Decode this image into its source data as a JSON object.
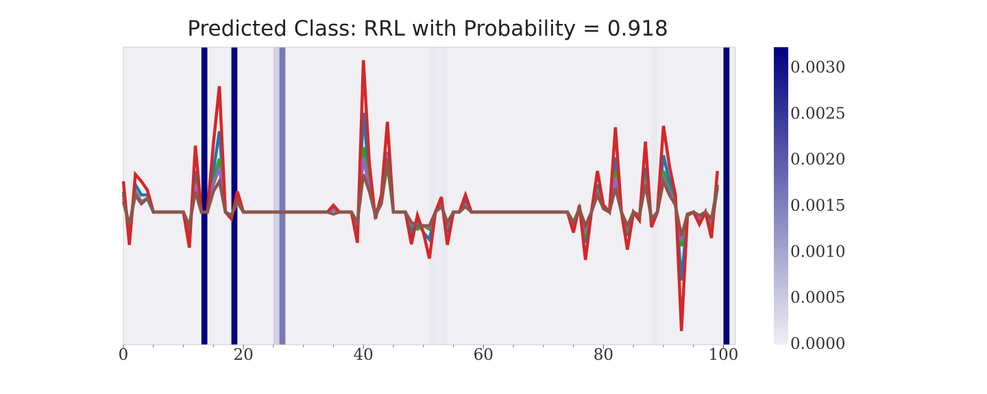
{
  "chart_data": {
    "type": "line",
    "title": "Predicted Class: RRL with Probability = 0.918",
    "x": [
      0,
      1,
      2,
      3,
      4,
      5,
      6,
      7,
      8,
      9,
      10,
      11,
      12,
      13,
      14,
      15,
      16,
      17,
      18,
      19,
      20,
      21,
      22,
      23,
      24,
      25,
      26,
      27,
      28,
      29,
      30,
      31,
      32,
      33,
      34,
      35,
      36,
      37,
      38,
      39,
      40,
      41,
      42,
      43,
      44,
      45,
      46,
      47,
      48,
      49,
      50,
      51,
      52,
      53,
      54,
      55,
      56,
      57,
      58,
      59,
      60,
      61,
      62,
      63,
      64,
      65,
      66,
      67,
      68,
      69,
      70,
      71,
      72,
      73,
      74,
      75,
      76,
      77,
      78,
      79,
      80,
      81,
      82,
      83,
      84,
      85,
      86,
      87,
      88,
      89,
      90,
      91,
      92,
      93,
      94,
      95,
      96,
      97,
      98,
      99
    ],
    "series": [
      {
        "color": "#1f77b4",
        "values": [
          0.3,
          -0.3,
          0.4,
          0.25,
          0.25,
          0,
          0,
          0,
          0,
          0,
          0,
          -0.35,
          0.6,
          0,
          0,
          0.6,
          1.18,
          0,
          -0.05,
          0.2,
          0,
          0,
          0,
          0,
          0,
          0,
          0,
          0,
          0,
          0,
          0,
          0,
          0,
          0,
          0,
          0.05,
          0,
          0,
          0,
          -0.3,
          1.45,
          0.5,
          -0.05,
          0.2,
          0.85,
          0,
          0,
          0,
          -0.3,
          -0.1,
          -0.3,
          -0.4,
          0,
          0.15,
          -0.3,
          0,
          0,
          0.15,
          0,
          0,
          0,
          0,
          0,
          0,
          0,
          0,
          0,
          0,
          0,
          0,
          0,
          0,
          0,
          0,
          0,
          -0.2,
          0.05,
          -0.45,
          0,
          0.4,
          0.05,
          0,
          0.8,
          0,
          -0.35,
          0,
          -0.08,
          0.65,
          -0.15,
          0,
          0.83,
          0.45,
          0.15,
          -1.0,
          -0.05,
          0,
          -0.12,
          0,
          -0.25,
          0.4
        ]
      },
      {
        "color": "#2ca02c",
        "values": [
          0.25,
          -0.25,
          0.3,
          0.15,
          0.2,
          0,
          0,
          0,
          0,
          0,
          0,
          -0.25,
          0.45,
          0,
          0,
          0.45,
          0.78,
          0,
          -0.05,
          0.15,
          0,
          0,
          0,
          0,
          0,
          0,
          0,
          0,
          0,
          0,
          0,
          0,
          0,
          0,
          0,
          0.03,
          0,
          0,
          0,
          -0.2,
          0.95,
          0.4,
          -0.05,
          0.15,
          0.7,
          0,
          0,
          0,
          -0.2,
          -0.25,
          -0.2,
          -0.25,
          0,
          0.1,
          -0.2,
          0,
          0,
          0.1,
          0,
          0,
          0,
          0,
          0,
          0,
          0,
          0,
          0,
          0,
          0,
          0,
          0,
          0,
          0,
          0,
          0,
          -0.15,
          0.05,
          -0.3,
          0,
          0.3,
          0.05,
          0,
          0.6,
          0,
          -0.25,
          0,
          -0.05,
          0.5,
          -0.1,
          0,
          0.6,
          0.35,
          0.1,
          -0.5,
          -0.03,
          0,
          -0.1,
          0,
          -0.2,
          0.35
        ]
      },
      {
        "color": "#9467bd",
        "values": [
          0.2,
          -0.22,
          0.28,
          0.15,
          0.2,
          0,
          0,
          0,
          0,
          0,
          0,
          -0.22,
          0.4,
          0,
          0,
          0.4,
          0.65,
          0,
          -0.05,
          0.15,
          0,
          0,
          0,
          0,
          0,
          0,
          0,
          0,
          0,
          0,
          0,
          0,
          0,
          0,
          0,
          0.03,
          0,
          0,
          0,
          -0.18,
          0.8,
          0.35,
          -0.05,
          0.15,
          0.88,
          0,
          0,
          0,
          -0.18,
          -0.2,
          -0.2,
          -0.22,
          0,
          0.1,
          -0.18,
          0,
          0,
          0.1,
          0,
          0,
          0,
          0,
          0,
          0,
          0,
          0,
          0,
          0,
          0,
          0,
          0,
          0,
          0,
          0,
          0,
          -0.15,
          0.05,
          -0.25,
          0,
          0.28,
          0.05,
          0,
          0.5,
          0,
          -0.22,
          0,
          -0.05,
          0.45,
          -0.1,
          0,
          0.5,
          0.3,
          0.1,
          -0.42,
          -0.03,
          0,
          -0.08,
          0,
          -0.15,
          0.4
        ]
      },
      {
        "color": "#d62728",
        "values": [
          0.45,
          -0.48,
          0.55,
          0.45,
          0.32,
          0,
          0,
          0,
          0,
          0,
          0,
          -0.52,
          0.97,
          0,
          0,
          1.0,
          1.84,
          0,
          -0.1,
          0.3,
          0,
          0,
          0,
          0,
          0,
          0,
          0,
          0,
          0,
          0,
          0,
          0,
          0,
          0,
          0,
          0.1,
          0,
          0,
          0,
          -0.45,
          2.22,
          0.7,
          -0.1,
          0.25,
          1.32,
          0,
          0,
          0,
          -0.47,
          -0.05,
          -0.3,
          -0.68,
          0,
          0.22,
          -0.48,
          0,
          0,
          0.25,
          0,
          0,
          0,
          0,
          0,
          0,
          0,
          0,
          0,
          0,
          0,
          0,
          0,
          0,
          0,
          0,
          0,
          -0.3,
          0.1,
          -0.7,
          0,
          0.6,
          0.1,
          0,
          1.24,
          0,
          -0.55,
          0,
          -0.12,
          1.03,
          -0.22,
          0,
          1.26,
          0.67,
          0.25,
          -1.74,
          -0.05,
          0,
          -0.18,
          0,
          -0.38,
          0.6
        ]
      },
      {
        "color": "#8c564b",
        "values": [
          0.15,
          -0.18,
          0.25,
          0.12,
          0.2,
          0,
          0,
          0,
          0,
          0,
          0,
          -0.2,
          0.3,
          0,
          0,
          0.3,
          0.45,
          0,
          -0.05,
          0.15,
          0,
          0,
          0,
          0,
          0,
          0,
          0,
          0,
          0,
          0,
          0,
          0,
          0,
          0,
          0,
          -0.03,
          0,
          0,
          0,
          -0.15,
          0.55,
          0.3,
          -0.05,
          0.12,
          0.78,
          0,
          0,
          0,
          -0.15,
          -0.2,
          -0.2,
          -0.2,
          0,
          0.08,
          -0.15,
          0,
          0,
          0.08,
          0,
          0,
          0,
          0,
          0,
          0,
          0,
          0,
          0,
          0,
          0,
          0,
          0,
          0,
          0,
          0,
          0,
          -0.15,
          0.05,
          -0.2,
          0,
          0.25,
          0.05,
          0,
          0.35,
          0,
          -0.2,
          0,
          -0.05,
          0.4,
          -0.1,
          0,
          0.45,
          0.25,
          0.1,
          -0.35,
          -0.03,
          0,
          -0.05,
          0,
          -0.1,
          0.38
        ]
      }
    ],
    "xlim": [
      0,
      102
    ],
    "ylim": [
      -1.94,
      2.41
    ],
    "xticks": [
      0,
      20,
      40,
      60,
      80,
      100
    ],
    "xminorticks": [
      5,
      10,
      15,
      25,
      30,
      35,
      45,
      50,
      55,
      65,
      70,
      75,
      85,
      90,
      95
    ],
    "heatmap": {
      "values": [
        0,
        0,
        0,
        0,
        0,
        0,
        0,
        0,
        0,
        0,
        0,
        0,
        0,
        0.00323,
        0,
        0,
        0,
        0,
        0.00323,
        0,
        0,
        0,
        0,
        0,
        0,
        0.0004,
        0.0016,
        0,
        0,
        0,
        0,
        0,
        0,
        0,
        0,
        0,
        0,
        0,
        0,
        0,
        0,
        0,
        0,
        0,
        0,
        0,
        0,
        0,
        0,
        0,
        0,
        0.0001,
        5e-05,
        0.0001,
        0,
        0,
        0,
        0,
        0,
        0,
        0,
        0,
        0,
        0,
        0,
        0,
        0,
        0,
        0,
        0,
        0,
        0,
        0,
        0,
        0,
        0,
        0,
        0,
        0,
        0,
        0,
        0,
        0,
        0,
        0,
        0,
        0,
        0,
        0.0001,
        0,
        0,
        0,
        0,
        0,
        0,
        0,
        0,
        0,
        0,
        0,
        0.00323,
        0
      ],
      "clim": [
        0,
        0.00323
      ],
      "cmap": [
        "#f0f0f4",
        "#000080"
      ],
      "ticks": [
        {
          "value": 0,
          "label": "0.0000"
        },
        {
          "value": 0.0005,
          "label": "0.0005"
        },
        {
          "value": 0.001,
          "label": "0.0010"
        },
        {
          "value": 0.0015,
          "label": "0.0015"
        },
        {
          "value": 0.002,
          "label": "0.0020"
        },
        {
          "value": 0.0025,
          "label": "0.0025"
        },
        {
          "value": 0.003,
          "label": "0.0030"
        }
      ]
    }
  }
}
